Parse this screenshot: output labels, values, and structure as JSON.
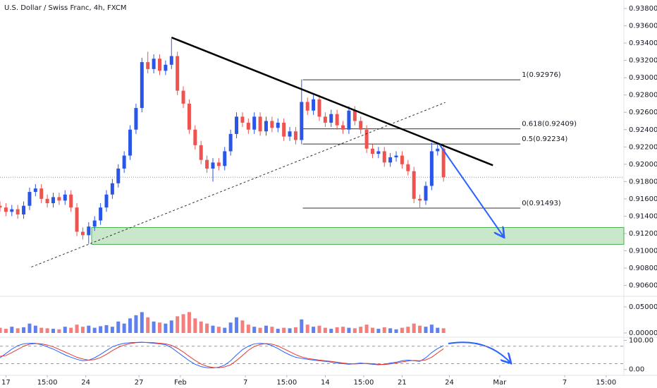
{
  "chart_data": {
    "type": "candlestick",
    "title": "U.S. Dollar / Swiss Franc, 4h, FXCM",
    "up_color": "#2a56e8",
    "down_color": "#ef5350",
    "x": [
      0,
      2,
      4,
      6,
      8,
      10,
      12,
      14,
      16,
      18,
      20,
      22,
      24,
      26,
      28,
      30,
      32,
      34,
      36,
      38,
      40,
      42,
      44,
      46,
      48,
      50,
      52,
      54,
      56,
      58,
      60,
      62,
      64,
      66,
      68,
      70,
      72,
      74,
      76,
      78,
      80,
      82,
      84,
      86,
      88,
      90,
      92,
      94,
      96,
      98,
      100,
      102,
      104,
      106,
      108,
      110,
      112,
      114,
      116,
      118,
      120,
      122,
      124,
      126,
      128,
      130,
      132,
      134,
      136,
      138,
      140,
      142,
      144,
      146,
      148,
      150
    ],
    "open": [
      0.9152,
      0.915,
      0.9145,
      0.9148,
      0.9142,
      0.9152,
      0.9168,
      0.9172,
      0.916,
      0.9155,
      0.9162,
      0.9158,
      0.9165,
      0.915,
      0.9122,
      0.9118,
      0.9128,
      0.9135,
      0.915,
      0.9165,
      0.9178,
      0.9195,
      0.921,
      0.924,
      0.9265,
      0.9318,
      0.931,
      0.9322,
      0.9308,
      0.9315,
      0.9325,
      0.9285,
      0.927,
      0.924,
      0.9222,
      0.9205,
      0.9195,
      0.9202,
      0.9198,
      0.9215,
      0.9235,
      0.9255,
      0.9248,
      0.924,
      0.9255,
      0.9238,
      0.925,
      0.9242,
      0.9248,
      0.9232,
      0.9238,
      0.9228,
      0.9272,
      0.9262,
      0.9275,
      0.9255,
      0.9248,
      0.9258,
      0.9245,
      0.924,
      0.9262,
      0.925,
      0.924,
      0.9218,
      0.9212,
      0.9215,
      0.9202,
      0.9208,
      0.921,
      0.92,
      0.9192,
      0.916,
      0.9158,
      0.9175,
      0.9215,
      0.9218
    ],
    "high": [
      0.9157,
      0.9155,
      0.9153,
      0.9153,
      0.9157,
      0.9173,
      0.9177,
      0.9177,
      0.9165,
      0.9167,
      0.9167,
      0.917,
      0.917,
      0.9155,
      0.9127,
      0.9133,
      0.914,
      0.9155,
      0.917,
      0.9183,
      0.92,
      0.9215,
      0.9245,
      0.927,
      0.9323,
      0.933,
      0.9327,
      0.9327,
      0.932,
      0.9345,
      0.933,
      0.929,
      0.9275,
      0.9245,
      0.9227,
      0.921,
      0.9207,
      0.9207,
      0.922,
      0.924,
      0.926,
      0.926,
      0.9253,
      0.926,
      0.926,
      0.9255,
      0.9255,
      0.9253,
      0.9253,
      0.9243,
      0.9243,
      0.9298,
      0.9277,
      0.928,
      0.928,
      0.926,
      0.9263,
      0.9263,
      0.925,
      0.9267,
      0.9267,
      0.9255,
      0.9245,
      0.9223,
      0.922,
      0.922,
      0.9213,
      0.9215,
      0.9215,
      0.9205,
      0.9197,
      0.9165,
      0.918,
      0.9225,
      0.9223,
      0.9223
    ],
    "low": [
      0.9145,
      0.914,
      0.914,
      0.9137,
      0.9137,
      0.9147,
      0.9163,
      0.9155,
      0.915,
      0.915,
      0.9153,
      0.9153,
      0.9145,
      0.9117,
      0.9113,
      0.9108,
      0.9123,
      0.913,
      0.9145,
      0.916,
      0.9173,
      0.919,
      0.9205,
      0.9235,
      0.926,
      0.9305,
      0.9305,
      0.9303,
      0.9303,
      0.931,
      0.928,
      0.9265,
      0.9235,
      0.9217,
      0.92,
      0.919,
      0.918,
      0.9193,
      0.9193,
      0.921,
      0.923,
      0.9243,
      0.9235,
      0.9235,
      0.9233,
      0.9233,
      0.9237,
      0.9237,
      0.9227,
      0.9227,
      0.9223,
      0.9223,
      0.9257,
      0.9257,
      0.925,
      0.9243,
      0.9243,
      0.924,
      0.9235,
      0.9235,
      0.9245,
      0.9235,
      0.9213,
      0.9207,
      0.9207,
      0.9197,
      0.9197,
      0.9203,
      0.9195,
      0.9187,
      0.9155,
      0.9149,
      0.9153,
      0.917,
      0.921,
      0.918
    ],
    "close": [
      0.915,
      0.9145,
      0.9148,
      0.9142,
      0.9152,
      0.9168,
      0.9172,
      0.916,
      0.9155,
      0.9162,
      0.9158,
      0.9165,
      0.915,
      0.9122,
      0.9118,
      0.9128,
      0.9135,
      0.915,
      0.9165,
      0.9178,
      0.9195,
      0.921,
      0.924,
      0.9265,
      0.9318,
      0.931,
      0.9322,
      0.9308,
      0.9315,
      0.9325,
      0.9285,
      0.927,
      0.924,
      0.9222,
      0.9205,
      0.9195,
      0.9202,
      0.9198,
      0.9215,
      0.9235,
      0.9255,
      0.9248,
      0.924,
      0.9255,
      0.9238,
      0.925,
      0.9242,
      0.9248,
      0.9232,
      0.9238,
      0.9228,
      0.9272,
      0.9262,
      0.9275,
      0.9255,
      0.9248,
      0.9258,
      0.9245,
      0.924,
      0.9262,
      0.925,
      0.924,
      0.9218,
      0.9212,
      0.9215,
      0.9202,
      0.9208,
      0.921,
      0.92,
      0.9192,
      0.916,
      0.9158,
      0.9175,
      0.9215,
      0.9218,
      0.9185
    ],
    "xlim": [
      0,
      211
    ],
    "xticks": [
      {
        "value": 2,
        "label": "17"
      },
      {
        "value": 16,
        "label": "15:00"
      },
      {
        "value": 29,
        "label": "24"
      },
      {
        "value": 47,
        "label": "27"
      },
      {
        "value": 61,
        "label": "Feb"
      },
      {
        "value": 83,
        "label": "7"
      },
      {
        "value": 97,
        "label": "15:00"
      },
      {
        "value": 110,
        "label": "14"
      },
      {
        "value": 123,
        "label": "15:00"
      },
      {
        "value": 136,
        "label": "21"
      },
      {
        "value": 152,
        "label": "24"
      },
      {
        "value": 169,
        "label": "Mar"
      },
      {
        "value": 191,
        "label": "7"
      },
      {
        "value": 205,
        "label": "15:00"
      }
    ],
    "ylim": [
      0.90474,
      0.93898
    ],
    "yticks": [
      {
        "value": 0.938,
        "label": "0.93800"
      },
      {
        "value": 0.936,
        "label": "0.93600"
      },
      {
        "value": 0.934,
        "label": "0.93400"
      },
      {
        "value": 0.932,
        "label": "0.93200"
      },
      {
        "value": 0.93,
        "label": "0.93000"
      },
      {
        "value": 0.928,
        "label": "0.92800"
      },
      {
        "value": 0.926,
        "label": "0.92600"
      },
      {
        "value": 0.924,
        "label": "0.92400"
      },
      {
        "value": 0.922,
        "label": "0.92200"
      },
      {
        "value": 0.92,
        "label": "0.92000"
      },
      {
        "value": 0.918,
        "label": "0.91800"
      },
      {
        "value": 0.916,
        "label": "0.91600"
      },
      {
        "value": 0.914,
        "label": "0.91400"
      },
      {
        "value": 0.912,
        "label": "0.91200"
      },
      {
        "value": 0.91,
        "label": "0.91000"
      },
      {
        "value": 0.908,
        "label": "0.90800"
      },
      {
        "value": 0.906,
        "label": "0.90600"
      }
    ],
    "volume": {
      "values": [
        0.01,
        0.008,
        0.012,
        0.009,
        0.011,
        0.018,
        0.014,
        0.01,
        0.009,
        0.008,
        0.007,
        0.012,
        0.01,
        0.016,
        0.012,
        0.014,
        0.01,
        0.013,
        0.015,
        0.012,
        0.022,
        0.018,
        0.028,
        0.034,
        0.04,
        0.03,
        0.022,
        0.02,
        0.018,
        0.024,
        0.032,
        0.036,
        0.04,
        0.028,
        0.022,
        0.018,
        0.014,
        0.012,
        0.01,
        0.02,
        0.03,
        0.024,
        0.016,
        0.012,
        0.01,
        0.014,
        0.012,
        0.008,
        0.01,
        0.009,
        0.011,
        0.026,
        0.016,
        0.012,
        0.014,
        0.01,
        0.008,
        0.011,
        0.012,
        0.01,
        0.009,
        0.012,
        0.016,
        0.01,
        0.008,
        0.011,
        0.009,
        0.007,
        0.01,
        0.012,
        0.018,
        0.014,
        0.012,
        0.016,
        0.01,
        0.009
      ],
      "ylim": [
        -0.0081,
        0.0703
      ],
      "yticks": [
        {
          "value": 0.05,
          "label": "0.05000"
        },
        {
          "value": 0,
          "label": "0.00000"
        }
      ]
    },
    "stochastic": {
      "k": [
        40,
        55,
        70,
        82,
        88,
        90,
        90,
        85,
        78,
        70,
        60,
        50,
        42,
        35,
        30,
        32,
        40,
        52,
        65,
        78,
        85,
        90,
        92,
        93,
        94,
        92,
        90,
        88,
        85,
        75,
        60,
        45,
        30,
        18,
        10,
        6,
        5,
        8,
        15,
        30,
        50,
        68,
        80,
        88,
        90,
        88,
        82,
        72,
        60,
        50,
        42,
        38,
        35,
        32,
        30,
        28,
        25,
        22,
        20,
        18,
        20,
        22,
        20,
        18,
        16,
        18,
        22,
        25,
        30,
        32,
        30,
        28,
        40,
        58,
        72,
        82
      ],
      "d": [
        45,
        48,
        58,
        69,
        80,
        87,
        89,
        88,
        84,
        78,
        69,
        60,
        51,
        42,
        36,
        32,
        34,
        41,
        52,
        65,
        76,
        84,
        89,
        92,
        93,
        93,
        92,
        90,
        88,
        83,
        73,
        60,
        45,
        31,
        19,
        11,
        7,
        6,
        9,
        16,
        31,
        48,
        66,
        79,
        86,
        89,
        87,
        81,
        71,
        61,
        51,
        43,
        38,
        35,
        32,
        30,
        28,
        25,
        22,
        20,
        19,
        20,
        21,
        20,
        18,
        17,
        19,
        22,
        26,
        29,
        31,
        30,
        33,
        42,
        57,
        71
      ],
      "k_color": "#2962ff",
      "d_color": "#e53935",
      "ylim": [
        -20,
        106
      ],
      "yticks": [
        {
          "value": 100,
          "label": "100.00"
        },
        {
          "value": 0,
          "label": "0.00"
        }
      ],
      "levels": [
        80,
        20
      ]
    },
    "drawings": {
      "trendline": {
        "x": [
          58,
          166.7
        ],
        "y": [
          0.93465,
          0.91988
        ],
        "color": "#000000"
      },
      "support_line": {
        "x": [
          10.6,
          150.6
        ],
        "y": [
          0.90812,
          0.92714
        ],
        "color": "#333333"
      },
      "zone": {
        "x": [
          31,
          211
        ],
        "y": [
          0.91074,
          0.91269
        ],
        "color": "#4caf50"
      },
      "fibonacci": {
        "x": [
          102.4,
          176
        ],
        "color": "#333333",
        "levels": [
          {
            "value": 0.92976,
            "label": "1(0.92976)"
          },
          {
            "value": 0.92409,
            "label": "0.618(0.92409)"
          },
          {
            "value": 0.92234,
            "label": "0.5(0.92234)"
          },
          {
            "value": 0.91493,
            "label": "0(0.91493)"
          }
        ]
      },
      "arrow": {
        "x": [
          148.7,
          170.3
        ],
        "y": [
          0.92225,
          0.91164
        ],
        "color": "#2962ff"
      }
    }
  }
}
